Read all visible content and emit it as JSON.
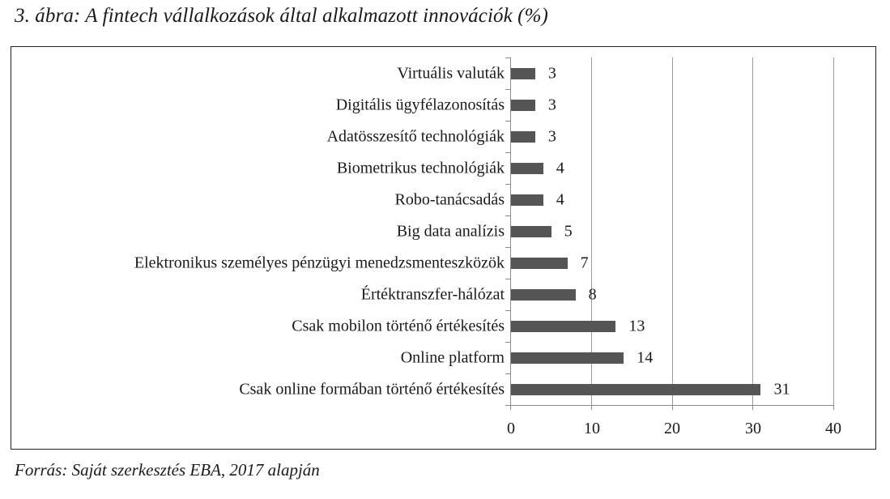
{
  "figure": {
    "caption": "3. ábra: A fintech vállalkozások által alkalmazott innovációk (%)",
    "source": "Forrás: Saját szerkesztés EBA, 2017 alapján"
  },
  "chart_data": {
    "type": "bar",
    "orientation": "horizontal",
    "title": "3. ábra: A fintech vállalkozások által alkalmazott innovációk (%)",
    "xlabel": "",
    "ylabel": "",
    "xlim": [
      0,
      40
    ],
    "xticks": [
      "0",
      "10",
      "20",
      "30",
      "40"
    ],
    "grid": "vertical",
    "legend": null,
    "bar_color": "#555555",
    "categories": [
      "Virtuális valuták",
      "Digitális ügyfélazonosítás",
      "Adatösszesítő technológiák",
      "Biometrikus technológiák",
      "Robo-tanácsadás",
      "Big data analízis",
      "Elektronikus személyes pénzügyi menedzsmenteszközök",
      "Értéktranszfer-hálózat",
      "Csak mobilon történő értékesítés",
      "Online platform",
      "Csak online formában történő értékesítés"
    ],
    "values": [
      3,
      3,
      3,
      4,
      4,
      5,
      7,
      8,
      13,
      14,
      31
    ],
    "value_labels": [
      "3",
      "3",
      "3",
      "4",
      "4",
      "5",
      "7",
      "8",
      "13",
      "14",
      "31"
    ],
    "source": "Forrás: Saját szerkesztés EBA, 2017 alapján"
  }
}
